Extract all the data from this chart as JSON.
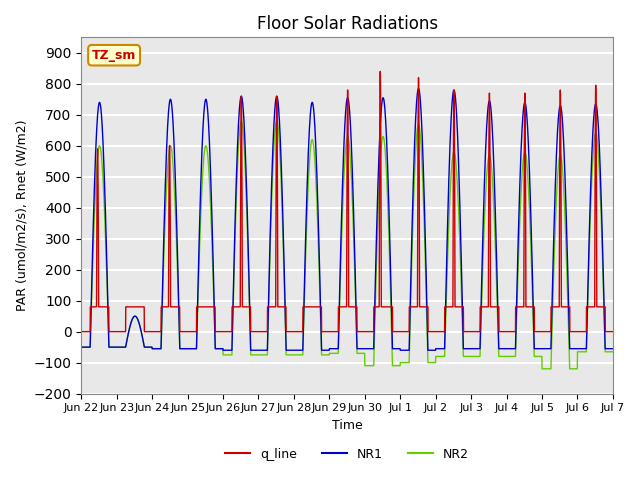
{
  "title": "Floor Solar Radiations",
  "xlabel": "Time",
  "ylabel": "PAR (umol/m2/s), Rnet (W/m2)",
  "ylim": [
    -200,
    950
  ],
  "yticks": [
    -200,
    -100,
    0,
    100,
    200,
    300,
    400,
    500,
    600,
    700,
    800,
    900
  ],
  "background_color": "#e8e8e8",
  "grid_color": "white",
  "line_colors": {
    "q_line": "#cc0000",
    "NR1": "#0000cc",
    "NR2": "#66cc00"
  },
  "annotation_box": {
    "text": "TZ_sm",
    "facecolor": "#ffffcc",
    "edgecolor": "#cc8800",
    "text_color": "#cc0000"
  },
  "x_tick_labels": [
    "Jun 22",
    "Jun 23",
    "Jun 24",
    "Jun 25",
    "Jun 26",
    "Jun 27",
    "Jun 28",
    "Jun 29",
    "Jun 30",
    "Jul 1",
    "Jul 2",
    "Jul 3",
    "Jul 4",
    "Jul 5",
    "Jul 6",
    "Jul 7"
  ],
  "num_days": 15,
  "q_peaks": [
    590,
    80,
    600,
    80,
    760,
    760,
    80,
    780,
    840,
    820,
    780,
    770,
    770,
    780,
    795
  ],
  "NR1_peaks": [
    740,
    50,
    750,
    750,
    760,
    760,
    740,
    755,
    755,
    785,
    780,
    745,
    740,
    730,
    735
  ],
  "NR2_peaks": [
    600,
    50,
    600,
    600,
    680,
    680,
    620,
    630,
    630,
    670,
    580,
    570,
    580,
    570,
    640
  ],
  "NR1_nights": [
    -50,
    -50,
    -55,
    -55,
    -60,
    -60,
    -60,
    -55,
    -55,
    -60,
    -55,
    -55,
    -55,
    -55,
    -55
  ],
  "NR2_nights": [
    -50,
    -50,
    -55,
    -55,
    -75,
    -75,
    -75,
    -70,
    -110,
    -100,
    -80,
    -80,
    -80,
    -120,
    -65
  ],
  "peak_fracs": [
    0.4,
    0.5,
    0.45,
    0.55,
    0.5,
    0.5,
    0.5,
    0.5,
    0.35,
    0.5,
    0.5,
    0.5,
    0.5,
    0.5,
    0.5
  ]
}
